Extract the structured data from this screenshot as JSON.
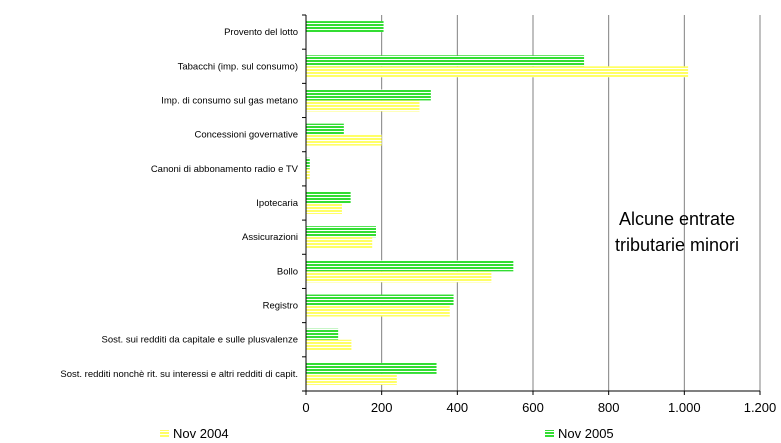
{
  "chart_data": {
    "type": "bar",
    "orientation": "horizontal",
    "title": "",
    "annotation_lines": [
      "Alcune entrate",
      "tributarie minori"
    ],
    "categories": [
      "Provento del lotto",
      "Tabacchi (imp. sul consumo)",
      "Imp. di consumo sul gas metano",
      "Concessioni governative",
      "Canoni di abbonamento radio e TV",
      "Ipotecaria",
      "Assicurazioni",
      "Bollo",
      "Registro",
      "Sost. sui redditi da capitale e sulle plusvalenze",
      "Sost. redditi nonchè rit. su interessi e altri redditi di capit."
    ],
    "series": [
      {
        "name": "Nov 2004",
        "color": "#ffff66",
        "stripe": "#ffffff",
        "values": [
          0,
          1010,
          300,
          200,
          10,
          95,
          175,
          490,
          380,
          120,
          240
        ]
      },
      {
        "name": "Nov 2005",
        "color": "#33dd33",
        "stripe": "#ffffff",
        "values": [
          205,
          735,
          330,
          100,
          10,
          118,
          185,
          548,
          390,
          85,
          345
        ]
      }
    ],
    "xlim": [
      0,
      1200
    ],
    "xticks": [
      0,
      200,
      400,
      600,
      800,
      1000,
      1200
    ],
    "xtick_labels": [
      "0",
      "200",
      "400",
      "600",
      "800",
      "1.000",
      "1.200"
    ],
    "grid": "vertical",
    "legend": "bottom"
  }
}
